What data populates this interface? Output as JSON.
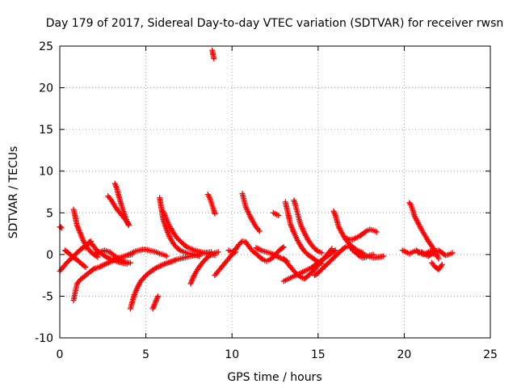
{
  "chart_data": {
    "type": "scatter",
    "title": "Day 179 of 2017, Sidereal Day-to-day VTEC variation (SDTVAR) for receiver rwsn",
    "xlabel": "GPS time / hours",
    "ylabel": "SDTVAR / TECUs",
    "xlim": [
      0,
      25
    ],
    "ylim": [
      -10,
      25
    ],
    "xticks": [
      0,
      5,
      10,
      15,
      20,
      25
    ],
    "yticks": [
      -10,
      -5,
      0,
      5,
      10,
      15,
      20,
      25
    ],
    "xtick_labels": [
      "0",
      "5",
      "10",
      "15",
      "20",
      "25"
    ],
    "ytick_labels": [
      "-10",
      "-5",
      "0",
      "5",
      "10",
      "15",
      "20",
      "25"
    ],
    "grid": true,
    "marker": "+",
    "color": "#ff0000",
    "series": [
      {
        "name": "track-01",
        "x": [
          0.0,
          0.05,
          0.1
        ],
        "y": [
          3.3,
          3.3,
          3.2
        ]
      },
      {
        "name": "track-02",
        "x": [
          0.0,
          0.2,
          0.4,
          0.6,
          0.8,
          1.0,
          1.2,
          1.4,
          1.6,
          1.8
        ],
        "y": [
          -2.0,
          -1.5,
          -1.0,
          -0.6,
          -0.2,
          0.2,
          0.6,
          0.9,
          1.2,
          1.6
        ]
      },
      {
        "name": "track-03",
        "x": [
          0.3,
          0.5,
          0.7,
          0.9,
          1.1,
          1.3,
          1.5
        ],
        "y": [
          0.5,
          0.2,
          -0.2,
          -0.5,
          -0.8,
          -1.2,
          -1.5
        ]
      },
      {
        "name": "track-04",
        "x": [
          0.8,
          0.9,
          1.0,
          1.2,
          1.4,
          1.6,
          1.8,
          2.0,
          2.2
        ],
        "y": [
          5.4,
          4.5,
          3.5,
          2.5,
          1.5,
          0.8,
          0.3,
          0.0,
          -0.3
        ]
      },
      {
        "name": "track-05",
        "x": [
          0.8,
          0.9,
          1.0,
          1.2,
          1.5,
          1.8,
          2.0,
          2.3,
          2.6,
          3.0,
          3.3,
          3.6,
          3.9,
          4.2
        ],
        "y": [
          -5.5,
          -4.5,
          -3.5,
          -3.0,
          -2.5,
          -2.0,
          -1.7,
          -1.5,
          -1.2,
          -0.8,
          -0.5,
          -0.3,
          -0.1,
          0.0
        ]
      },
      {
        "name": "track-06",
        "x": [
          1.5,
          1.7,
          1.9,
          2.1,
          2.3,
          2.5,
          2.7,
          3.0,
          3.3,
          3.6,
          3.9
        ],
        "y": [
          0.8,
          1.5,
          1.2,
          0.6,
          0.2,
          0.0,
          -0.3,
          -0.6,
          -0.8,
          -1.0,
          -1.1
        ]
      },
      {
        "name": "track-07",
        "x": [
          2.0,
          2.3,
          2.6,
          2.9,
          3.2,
          3.5,
          3.8,
          4.1
        ],
        "y": [
          0.0,
          0.3,
          0.5,
          0.3,
          -0.2,
          -0.6,
          -0.9,
          -1.0
        ]
      },
      {
        "name": "track-08",
        "x": [
          2.8,
          3.0,
          3.2,
          3.4,
          3.6,
          3.8,
          4.0
        ],
        "y": [
          7.0,
          6.5,
          5.8,
          5.2,
          4.7,
          4.2,
          3.6
        ]
      },
      {
        "name": "track-09",
        "x": [
          3.2,
          3.3,
          3.4,
          3.5,
          3.6,
          3.7,
          3.8,
          3.9,
          4.0
        ],
        "y": [
          8.5,
          8.0,
          7.2,
          6.5,
          5.8,
          5.2,
          4.6,
          4.0,
          3.5
        ]
      },
      {
        "name": "track-10",
        "x": [
          3.8,
          4.0,
          4.2,
          4.4,
          4.6,
          4.8,
          5.0,
          5.2,
          5.4,
          5.6,
          5.8,
          6.0,
          6.2
        ],
        "y": [
          -0.2,
          0.0,
          0.2,
          0.4,
          0.5,
          0.6,
          0.6,
          0.5,
          0.4,
          0.3,
          0.1,
          0.0,
          -0.2
        ]
      },
      {
        "name": "track-11",
        "x": [
          4.1,
          4.3,
          4.5,
          4.7,
          5.0,
          5.3,
          5.6,
          6.0,
          6.4,
          6.8,
          7.2,
          7.6,
          8.0,
          8.4,
          8.8
        ],
        "y": [
          -6.5,
          -5.0,
          -4.0,
          -3.2,
          -2.5,
          -2.0,
          -1.6,
          -1.2,
          -0.9,
          -0.6,
          -0.4,
          -0.2,
          0.0,
          0.2,
          0.3
        ]
      },
      {
        "name": "track-12",
        "x": [
          5.4,
          5.5,
          5.6,
          5.7
        ],
        "y": [
          -6.5,
          -6.0,
          -5.5,
          -5.0
        ]
      },
      {
        "name": "track-13",
        "x": [
          5.8,
          5.9,
          6.0,
          6.2,
          6.4,
          6.6,
          6.8,
          7.0,
          7.2,
          7.5,
          7.8,
          8.1
        ],
        "y": [
          6.8,
          5.5,
          4.2,
          3.0,
          2.0,
          1.3,
          0.8,
          0.5,
          0.3,
          0.1,
          0.0,
          -0.2
        ]
      },
      {
        "name": "track-14",
        "x": [
          6.0,
          6.2,
          6.4,
          6.6,
          6.8,
          7.0,
          7.2,
          7.4,
          7.6,
          7.8,
          8.0,
          8.2,
          8.4,
          8.6,
          8.8,
          9.0
        ],
        "y": [
          5.2,
          4.2,
          3.3,
          2.6,
          2.0,
          1.6,
          1.2,
          0.9,
          0.7,
          0.5,
          0.4,
          0.3,
          0.2,
          0.1,
          0.0,
          -0.1
        ]
      },
      {
        "name": "track-15",
        "x": [
          7.6,
          7.8,
          8.0,
          8.2,
          8.4,
          8.6,
          8.8,
          9.0,
          9.2
        ],
        "y": [
          -3.5,
          -2.5,
          -1.8,
          -1.2,
          -0.7,
          -0.3,
          0.0,
          0.2,
          0.3
        ]
      },
      {
        "name": "track-16",
        "x": [
          8.6,
          8.7,
          8.8,
          8.9,
          9.0
        ],
        "y": [
          7.2,
          6.8,
          6.2,
          5.6,
          4.9
        ]
      },
      {
        "name": "track-17",
        "x": [
          8.85,
          8.9,
          8.95
        ],
        "y": [
          24.5,
          24.0,
          23.5
        ]
      },
      {
        "name": "track-18",
        "x": [
          9.0,
          9.2,
          9.4,
          9.6,
          9.8,
          10.0,
          10.2
        ],
        "y": [
          -2.5,
          -2.0,
          -1.5,
          -1.0,
          -0.5,
          0.0,
          0.3
        ]
      },
      {
        "name": "track-19",
        "x": [
          10.6,
          10.7,
          10.8,
          11.0,
          11.2,
          11.4,
          11.6
        ],
        "y": [
          7.3,
          6.5,
          5.7,
          4.8,
          4.0,
          3.3,
          2.8
        ]
      },
      {
        "name": "track-20",
        "x": [
          9.8,
          10.0,
          10.2,
          10.4,
          10.6,
          10.8,
          11.0,
          11.2,
          11.4,
          11.6,
          11.8,
          12.0,
          12.2,
          12.4,
          12.6,
          12.8,
          13.0
        ],
        "y": [
          0.5,
          0.3,
          0.6,
          1.2,
          1.6,
          1.5,
          0.9,
          0.4,
          0.1,
          -0.3,
          -0.6,
          -0.8,
          -0.6,
          -0.3,
          0.2,
          0.6,
          0.9
        ]
      },
      {
        "name": "track-21",
        "x": [
          11.4,
          11.7,
          12.0,
          12.3,
          12.6,
          12.9,
          13.2
        ],
        "y": [
          0.8,
          0.5,
          0.3,
          0.1,
          -0.2,
          -0.5,
          -0.8
        ]
      },
      {
        "name": "track-22",
        "x": [
          12.4,
          12.5,
          12.6,
          12.7
        ],
        "y": [
          5.0,
          4.9,
          4.8,
          4.7
        ]
      },
      {
        "name": "track-23",
        "x": [
          13.1,
          13.2,
          13.3,
          13.4,
          13.6,
          13.8,
          14.0,
          14.2,
          14.4,
          14.6,
          14.8,
          15.0,
          15.2
        ],
        "y": [
          6.3,
          5.4,
          4.5,
          3.6,
          2.6,
          1.7,
          1.0,
          0.4,
          0.0,
          -0.3,
          -0.6,
          -0.9,
          -1.1
        ]
      },
      {
        "name": "track-24",
        "x": [
          13.0,
          13.2,
          13.4,
          13.6,
          13.8,
          14.0,
          14.2,
          14.4,
          14.6,
          14.8,
          15.0,
          15.2,
          15.4,
          15.6,
          15.8,
          16.0
        ],
        "y": [
          -3.2,
          -3.0,
          -2.8,
          -2.6,
          -2.4,
          -2.2,
          -2.0,
          -1.8,
          -1.6,
          -1.3,
          -1.0,
          -0.7,
          -0.4,
          -0.1,
          0.2,
          0.5
        ]
      },
      {
        "name": "track-25",
        "x": [
          13.0,
          13.2,
          13.4,
          13.6,
          13.8,
          14.0,
          14.2,
          14.4,
          14.6,
          14.8,
          15.0,
          15.2,
          15.4,
          15.6,
          15.8
        ],
        "y": [
          -0.5,
          -1.0,
          -1.5,
          -2.0,
          -2.4,
          -2.7,
          -2.9,
          -2.6,
          -2.2,
          -1.8,
          -1.3,
          -0.8,
          -0.3,
          0.2,
          0.7
        ]
      },
      {
        "name": "track-26",
        "x": [
          13.6,
          13.7,
          13.8,
          13.9,
          14.0,
          14.2,
          14.4,
          14.6,
          14.8,
          15.0,
          15.2
        ],
        "y": [
          6.5,
          5.8,
          5.0,
          4.2,
          3.5,
          2.6,
          1.8,
          1.2,
          0.7,
          0.4,
          0.2
        ]
      },
      {
        "name": "track-27",
        "x": [
          14.8,
          15.0,
          15.2,
          15.4,
          15.6,
          15.8,
          16.0,
          16.2,
          16.4,
          16.6,
          16.8,
          17.0,
          17.2,
          17.4,
          17.6,
          17.8,
          18.0,
          18.2
        ],
        "y": [
          -2.5,
          -2.2,
          -1.8,
          -1.4,
          -1.0,
          -0.6,
          -0.2,
          0.2,
          0.6,
          0.9,
          1.0,
          0.6,
          0.2,
          -0.2,
          -0.4,
          -0.3,
          -0.1,
          0.0
        ]
      },
      {
        "name": "track-28",
        "x": [
          15.9,
          16.0,
          16.1,
          16.2,
          16.4,
          16.6,
          16.8,
          17.0,
          17.2,
          17.4,
          17.6
        ],
        "y": [
          5.2,
          4.7,
          4.0,
          3.3,
          2.5,
          1.8,
          1.3,
          0.9,
          0.6,
          0.4,
          0.2
        ]
      },
      {
        "name": "track-29",
        "x": [
          16.6,
          16.8,
          17.0,
          17.2,
          17.4,
          17.6,
          17.8,
          18.0,
          18.2,
          18.4
        ],
        "y": [
          2.0,
          1.8,
          1.8,
          2.0,
          2.2,
          2.5,
          2.8,
          3.0,
          2.9,
          2.7
        ]
      },
      {
        "name": "track-30",
        "x": [
          17.0,
          17.3,
          17.6,
          17.9,
          18.2,
          18.5,
          18.8
        ],
        "y": [
          0.5,
          0.2,
          0.0,
          -0.2,
          -0.4,
          -0.3,
          -0.2
        ]
      },
      {
        "name": "track-31",
        "x": [
          19.9,
          20.1,
          20.3,
          20.5,
          20.7,
          20.9,
          21.1,
          21.3,
          21.5,
          21.7,
          21.9
        ],
        "y": [
          0.5,
          0.3,
          0.1,
          0.3,
          0.5,
          0.2,
          0.0,
          0.2,
          0.4,
          0.1,
          -0.1
        ]
      },
      {
        "name": "track-32",
        "x": [
          20.3,
          20.4,
          20.5,
          20.6,
          20.8,
          21.0,
          21.2,
          21.4,
          21.6,
          21.8,
          22.0
        ],
        "y": [
          6.2,
          5.9,
          5.3,
          4.6,
          3.8,
          3.0,
          2.3,
          1.6,
          1.0,
          0.4,
          -0.5
        ]
      },
      {
        "name": "track-33",
        "x": [
          20.8,
          21.0,
          21.2,
          21.4,
          21.6,
          21.8,
          22.0,
          22.2,
          22.4,
          22.6,
          22.8
        ],
        "y": [
          0.2,
          0.3,
          0.0,
          -0.2,
          0.1,
          0.4,
          0.5,
          0.2,
          -0.1,
          0.0,
          0.2
        ]
      },
      {
        "name": "track-34",
        "x": [
          21.6,
          21.8,
          22.0,
          22.2
        ],
        "y": [
          -1.0,
          -1.5,
          -1.8,
          -1.2
        ]
      }
    ]
  }
}
